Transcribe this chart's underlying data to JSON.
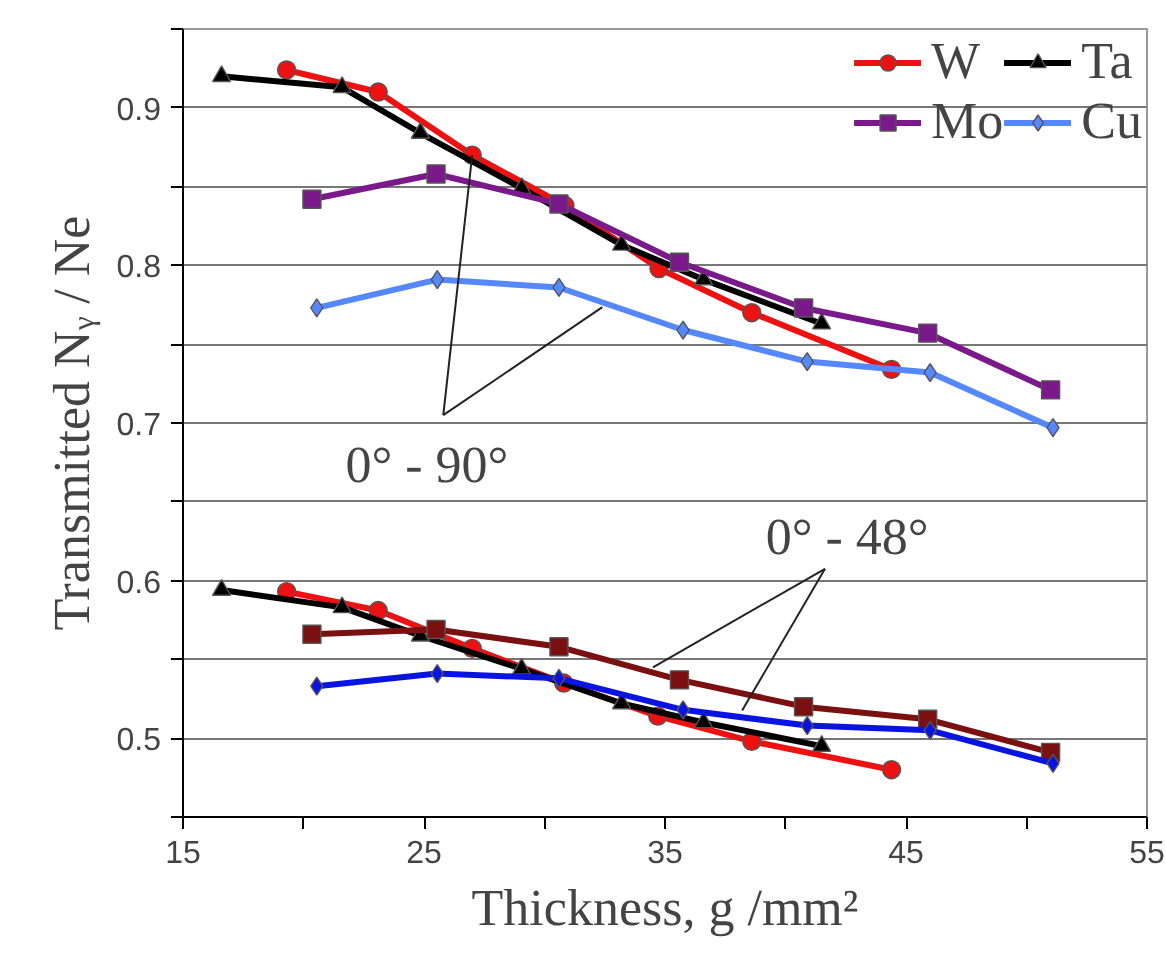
{
  "chart_data": {
    "type": "line",
    "xlabel": "Thickness, g /mm²",
    "ylabel": "Transmitted Nᵧ / Ne",
    "xlim": [
      15,
      55
    ],
    "ylim": [
      0.45,
      0.95
    ],
    "xticks": [
      15,
      {
        "value": 20,
        "label": null
      },
      25,
      {
        "value": 30,
        "label": null
      },
      35,
      {
        "value": 40,
        "label": null
      },
      45,
      {
        "value": 50,
        "label": null
      },
      55
    ],
    "yticks": [
      {
        "value": 0.45,
        "label": null
      },
      0.5,
      {
        "value": 0.55,
        "label": null
      },
      0.6,
      {
        "value": 0.65,
        "label": null
      },
      0.7,
      {
        "value": 0.75,
        "label": null
      },
      0.8,
      {
        "value": 0.85,
        "label": null
      },
      0.9,
      {
        "value": 0.95,
        "label": null
      }
    ],
    "grid": "y",
    "legend": "top right",
    "annotations": [
      {
        "text": "0° - 90°",
        "x": 27.0,
        "y": 0.87
      },
      {
        "text": "0° - 48°",
        "x": 34.5,
        "y": 0.545
      }
    ],
    "series": [
      {
        "name": "W",
        "color": "#ee1111",
        "marker": "circle",
        "x": [
          19.3,
          23.1,
          27.0,
          30.85,
          34.75,
          38.6,
          44.4
        ],
        "values": [
          0.924,
          0.91,
          0.87,
          0.838,
          0.798,
          0.77,
          0.734
        ]
      },
      {
        "name": "Ta",
        "color": "#000000",
        "marker": "triangle",
        "x": [
          16.6,
          21.6,
          24.85,
          29.05,
          33.2,
          36.6,
          41.5
        ],
        "values": [
          0.92,
          0.913,
          0.884,
          0.849,
          0.813,
          0.791,
          0.763
        ]
      },
      {
        "name": "Mo",
        "color": "#7a1a8a",
        "marker": "square",
        "x": [
          20.35,
          25.5,
          30.6,
          35.6,
          40.75,
          45.9,
          51.0
        ],
        "values": [
          0.842,
          0.858,
          0.839,
          0.802,
          0.773,
          0.757,
          0.721
        ]
      },
      {
        "name": "Cu",
        "color": "#5588ff",
        "marker": "diamond",
        "x": [
          20.55,
          25.55,
          30.6,
          35.75,
          40.9,
          46.0,
          51.1
        ],
        "values": [
          0.773,
          0.791,
          0.786,
          0.759,
          0.739,
          0.732,
          0.697
        ]
      },
      {
        "color": "#ee1111",
        "marker": "circle",
        "x": [
          19.3,
          23.1,
          27.0,
          30.8,
          34.7,
          38.6,
          44.4
        ],
        "values": [
          0.593,
          0.581,
          0.557,
          0.535,
          0.514,
          0.498,
          0.48
        ]
      },
      {
        "color": "#000000",
        "marker": "triangle",
        "x": [
          16.6,
          21.6,
          24.85,
          29.05,
          33.2,
          36.6,
          41.5
        ],
        "values": [
          0.594,
          0.583,
          0.565,
          0.544,
          0.522,
          0.51,
          0.495
        ]
      },
      {
        "color": "#7a1010",
        "marker": "square",
        "x": [
          20.35,
          25.5,
          30.6,
          35.6,
          40.75,
          45.9,
          51.0
        ],
        "values": [
          0.566,
          0.569,
          0.558,
          0.537,
          0.52,
          0.512,
          0.491
        ]
      },
      {
        "color": "#0a14e0",
        "marker": "diamond",
        "x": [
          20.55,
          25.55,
          30.6,
          35.75,
          40.9,
          46.0,
          51.1
        ],
        "values": [
          0.533,
          0.541,
          0.538,
          0.518,
          0.508,
          0.505,
          0.484
        ]
      }
    ]
  }
}
